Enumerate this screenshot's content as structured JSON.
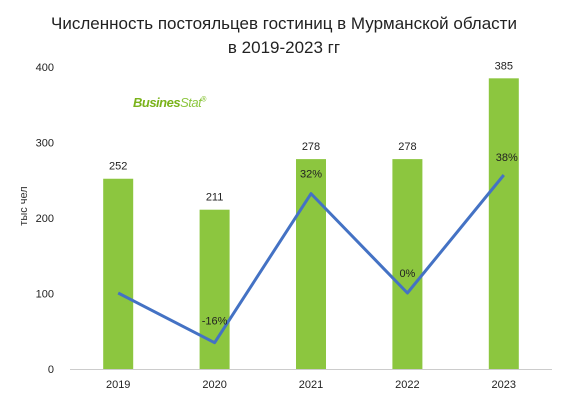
{
  "title_line1": "Численность постояльцев гостиниц в Мурманской области",
  "title_line2": "в 2019-2023 гг",
  "logo": {
    "main": "Busines",
    "accent": "Stat",
    "mark": "®"
  },
  "colors": {
    "bar": "#8cc63f",
    "line": "#4472c4",
    "text": "#222222",
    "axis": "#cccccc"
  },
  "chart_data": {
    "type": "bar",
    "title": "Численность постояльцев гостиниц в Мурманской области в 2019-2023 гг",
    "ylabel": "тыс чел",
    "xlabel": "",
    "ylim": [
      0,
      400
    ],
    "yticks": [
      0,
      100,
      200,
      300,
      400
    ],
    "grid": false,
    "categories": [
      "2019",
      "2020",
      "2021",
      "2022",
      "2023"
    ],
    "values": [
      252,
      211,
      278,
      278,
      385
    ],
    "value_labels": [
      "252",
      "211",
      "278",
      "278",
      "385"
    ],
    "growth_line": {
      "type": "line",
      "values": [
        null,
        -16,
        32,
        0,
        38
      ],
      "labels": [
        "",
        "-16%",
        "32%",
        "0%",
        "38%"
      ]
    }
  }
}
